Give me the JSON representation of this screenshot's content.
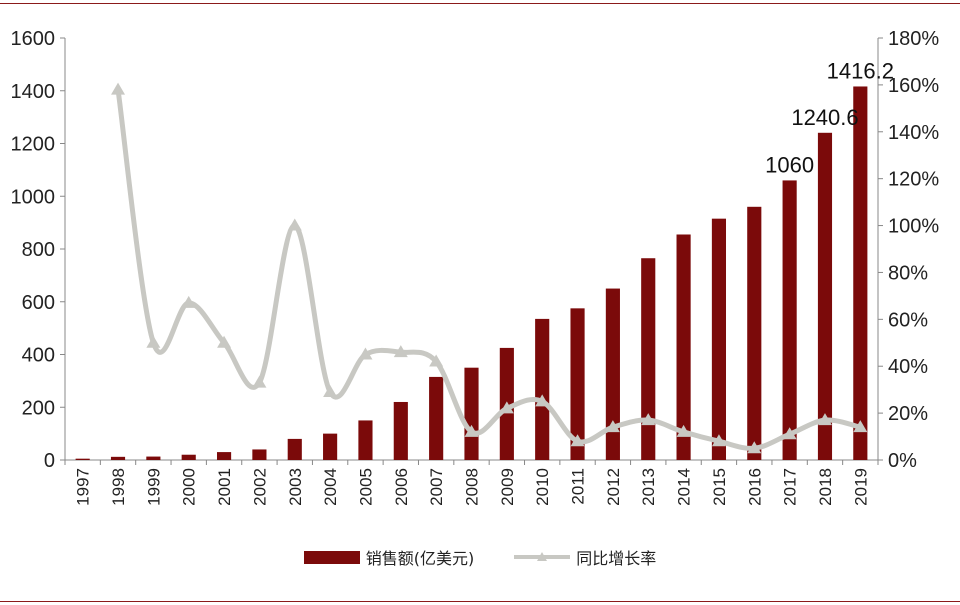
{
  "chart_data": {
    "type": "bar+line",
    "categories": [
      "1997",
      "1998",
      "1999",
      "2000",
      "2001",
      "2002",
      "2003",
      "2004",
      "2005",
      "2006",
      "2007",
      "2008",
      "2009",
      "2010",
      "2011",
      "2012",
      "2013",
      "2014",
      "2015",
      "2016",
      "2017",
      "2018",
      "2019"
    ],
    "series": [
      {
        "name": "销售额(亿美元)",
        "type": "bar",
        "axis": "left",
        "color": "#7b0a0a",
        "values": [
          5,
          12,
          13,
          20,
          30,
          40,
          80,
          100,
          150,
          220,
          315,
          350,
          425,
          535,
          575,
          650,
          765,
          855,
          915,
          960,
          1060,
          1240.6,
          1416.2
        ]
      },
      {
        "name": "同比增长率",
        "type": "line",
        "axis": "right",
        "color": "#c8c8c3",
        "marker": "triangle",
        "values": [
          null,
          158,
          50,
          67,
          50,
          33,
          100,
          29,
          45,
          46,
          42,
          12,
          22,
          25,
          8,
          14,
          17,
          12,
          8,
          5,
          11,
          17,
          14
        ]
      }
    ],
    "data_labels": [
      {
        "category": "2017",
        "text": "1060"
      },
      {
        "category": "2018",
        "text": "1240.6"
      },
      {
        "category": "2019",
        "text": "1416.2"
      }
    ],
    "y_left": {
      "min": 0,
      "max": 1600,
      "ticks": [
        "0",
        "200",
        "400",
        "600",
        "800",
        "1000",
        "1200",
        "1400",
        "1600"
      ]
    },
    "y_right": {
      "min": 0,
      "max": 180,
      "ticks": [
        "0%",
        "20%",
        "40%",
        "60%",
        "80%",
        "100%",
        "120%",
        "140%",
        "160%",
        "180%"
      ]
    },
    "legend_position": "bottom",
    "grid": false,
    "title": "",
    "xlabel": "",
    "ylabel": ""
  },
  "legend": {
    "bar_label": "销售额(亿美元)",
    "line_label": "同比增长率"
  },
  "colors": {
    "frame": "#8b1a1a",
    "axis": "#888888",
    "text": "#222222"
  }
}
